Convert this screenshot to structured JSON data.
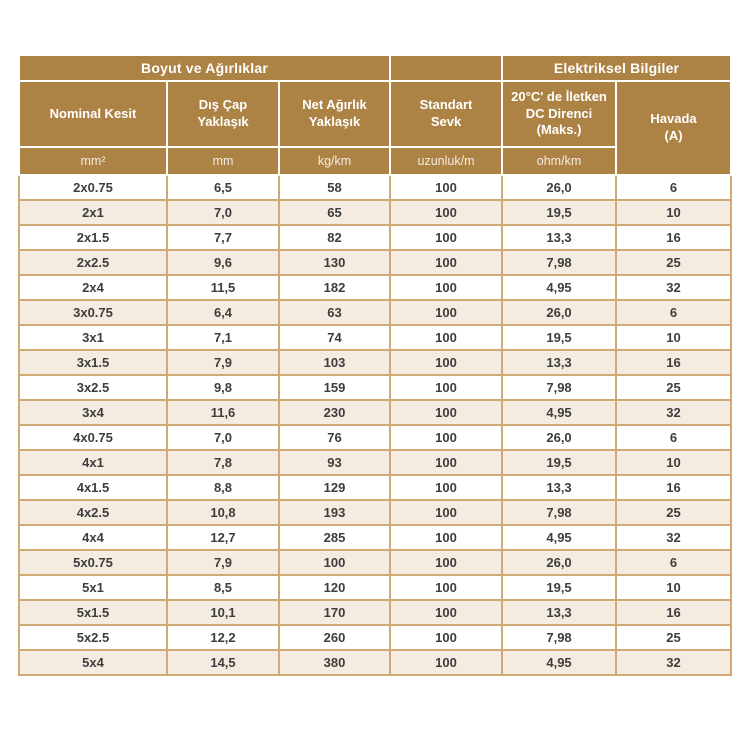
{
  "table": {
    "group_headers": [
      "Boyut ve Ağırlıklar",
      "",
      "Elektriksel Bilgiler"
    ],
    "columns": [
      {
        "label": "Nominal Kesit",
        "unit": "mm²"
      },
      {
        "label": "Dış Çap\nYaklaşık",
        "unit": "mm"
      },
      {
        "label": "Net Ağırlık\nYaklaşık",
        "unit": "kg/km"
      },
      {
        "label": "Standart\nSevk",
        "unit": "uzunluk/m"
      },
      {
        "label": "20°C' de İletken\nDC Direnci\n(Maks.)",
        "unit": "ohm/km"
      },
      {
        "label": "Havada\n(A)",
        "unit": ""
      }
    ],
    "rows": [
      [
        "2x0.75",
        "6,5",
        "58",
        "100",
        "26,0",
        "6"
      ],
      [
        "2x1",
        "7,0",
        "65",
        "100",
        "19,5",
        "10"
      ],
      [
        "2x1.5",
        "7,7",
        "82",
        "100",
        "13,3",
        "16"
      ],
      [
        "2x2.5",
        "9,6",
        "130",
        "100",
        "7,98",
        "25"
      ],
      [
        "2x4",
        "11,5",
        "182",
        "100",
        "4,95",
        "32"
      ],
      [
        "3x0.75",
        "6,4",
        "63",
        "100",
        "26,0",
        "6"
      ],
      [
        "3x1",
        "7,1",
        "74",
        "100",
        "19,5",
        "10"
      ],
      [
        "3x1.5",
        "7,9",
        "103",
        "100",
        "13,3",
        "16"
      ],
      [
        "3x2.5",
        "9,8",
        "159",
        "100",
        "7,98",
        "25"
      ],
      [
        "3x4",
        "11,6",
        "230",
        "100",
        "4,95",
        "32"
      ],
      [
        "4x0.75",
        "7,0",
        "76",
        "100",
        "26,0",
        "6"
      ],
      [
        "4x1",
        "7,8",
        "93",
        "100",
        "19,5",
        "10"
      ],
      [
        "4x1.5",
        "8,8",
        "129",
        "100",
        "13,3",
        "16"
      ],
      [
        "4x2.5",
        "10,8",
        "193",
        "100",
        "7,98",
        "25"
      ],
      [
        "4x4",
        "12,7",
        "285",
        "100",
        "4,95",
        "32"
      ],
      [
        "5x0.75",
        "7,9",
        "100",
        "100",
        "26,0",
        "6"
      ],
      [
        "5x1",
        "8,5",
        "120",
        "100",
        "19,5",
        "10"
      ],
      [
        "5x1.5",
        "10,1",
        "170",
        "100",
        "13,3",
        "16"
      ],
      [
        "5x2.5",
        "12,2",
        "260",
        "100",
        "7,98",
        "25"
      ],
      [
        "5x4",
        "14,5",
        "380",
        "100",
        "4,95",
        "32"
      ]
    ],
    "colors": {
      "header_background": "#ad8245",
      "header_text": "#ffffff",
      "grid_border": "#d0a975",
      "row_background": "#ffffff",
      "row_alt_background": "#f5ece1",
      "data_text": "#3d3d3d"
    }
  }
}
